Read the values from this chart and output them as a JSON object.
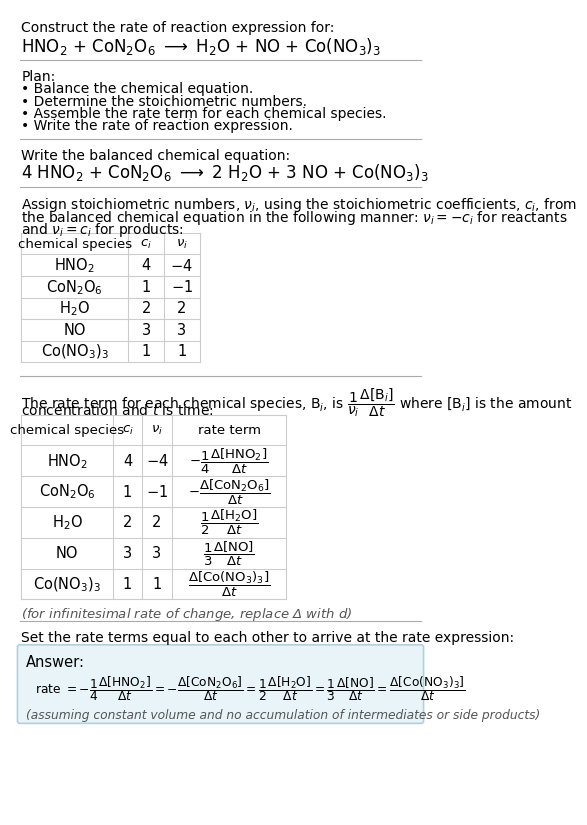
{
  "bg_color": "#ffffff",
  "text_color": "#000000",
  "gray_text": "#555555",
  "table_border": "#cccccc",
  "answer_bg": "#e8f4f8",
  "answer_border": "#b0d0e0",
  "title_text": "Construct the rate of reaction expression for:",
  "reaction_unbalanced": "HNO$_2$ + CoN$_2$O$_6$ $\\longrightarrow$ H$_2$O + NO + Co(NO$_3$)$_3$",
  "plan_header": "Plan:",
  "plan_items": [
    "• Balance the chemical equation.",
    "• Determine the stoichiometric numbers.",
    "• Assemble the rate term for each chemical species.",
    "• Write the rate of reaction expression."
  ],
  "balanced_header": "Write the balanced chemical equation:",
  "reaction_balanced": "4 HNO$_2$ + CoN$_2$O$_6$ $\\longrightarrow$ 2 H$_2$O + 3 NO + Co(NO$_3$)$_3$",
  "stoich_line1": "Assign stoichiometric numbers, $\\nu_i$, using the stoichiometric coefficients, $c_i$, from",
  "stoich_line2": "the balanced chemical equation in the following manner: $\\nu_i = -c_i$ for reactants",
  "stoich_line3": "and $\\nu_i = c_i$ for products:",
  "table1_headers": [
    "chemical species",
    "$c_i$",
    "$\\nu_i$"
  ],
  "table1_rows": [
    [
      "HNO$_2$",
      "4",
      "$-4$"
    ],
    [
      "CoN$_2$O$_6$",
      "1",
      "$-1$"
    ],
    [
      "H$_2$O",
      "2",
      "2"
    ],
    [
      "NO",
      "3",
      "3"
    ],
    [
      "Co(NO$_3$)$_3$",
      "1",
      "1"
    ]
  ],
  "rate_line1": "The rate term for each chemical species, B$_i$, is $\\dfrac{1}{\\nu_i}\\dfrac{\\Delta[\\mathrm{B}_i]}{\\Delta t}$ where [B$_i$] is the amount",
  "rate_line2": "concentration and $t$ is time:",
  "table2_headers": [
    "chemical species",
    "$c_i$",
    "$\\nu_i$",
    "rate term"
  ],
  "table2_rows": [
    [
      "HNO$_2$",
      "4",
      "$-4$",
      "$-\\dfrac{1}{4}\\dfrac{\\Delta[\\mathrm{HNO_2}]}{\\Delta t}$"
    ],
    [
      "CoN$_2$O$_6$",
      "1",
      "$-1$",
      "$-\\dfrac{\\Delta[\\mathrm{CoN_2O_6}]}{\\Delta t}$"
    ],
    [
      "H$_2$O",
      "2",
      "2",
      "$\\dfrac{1}{2}\\dfrac{\\Delta[\\mathrm{H_2O}]}{\\Delta t}$"
    ],
    [
      "NO",
      "3",
      "3",
      "$\\dfrac{1}{3}\\dfrac{\\Delta[\\mathrm{NO}]}{\\Delta t}$"
    ],
    [
      "Co(NO$_3$)$_3$",
      "1",
      "1",
      "$\\dfrac{\\Delta[\\mathrm{Co(NO_3)_3}]}{\\Delta t}$"
    ]
  ],
  "infinitesimal_note": "(for infinitesimal rate of change, replace Δ with $d$)",
  "set_rate_text": "Set the rate terms equal to each other to arrive at the rate expression:",
  "answer_label": "Answer:",
  "rate_expression": "rate $= -\\dfrac{1}{4}\\dfrac{\\Delta[\\mathrm{HNO_2}]}{\\Delta t} = -\\dfrac{\\Delta[\\mathrm{CoN_2O_6}]}{\\Delta t} = \\dfrac{1}{2}\\dfrac{\\Delta[\\mathrm{H_2O}]}{\\Delta t} = \\dfrac{1}{3}\\dfrac{\\Delta[\\mathrm{NO}]}{\\Delta t} = \\dfrac{\\Delta[\\mathrm{Co(NO_3)_3}]}{\\Delta t}$",
  "assumption_note": "(assuming constant volume and no accumulation of intermediates or side products)"
}
